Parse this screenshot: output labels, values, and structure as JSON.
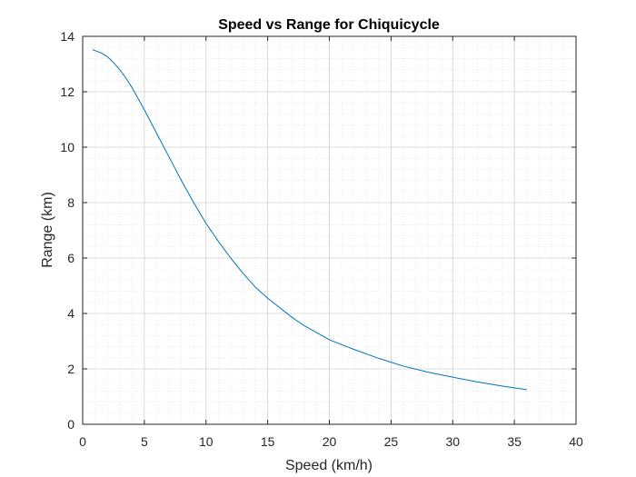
{
  "chart_data": {
    "type": "line",
    "title": "Speed vs Range for Chiquicycle",
    "xlabel": "Speed (km/h)",
    "ylabel": "Range (km)",
    "xlim": [
      0,
      40
    ],
    "ylim": [
      0,
      14
    ],
    "xticks": [
      0,
      5,
      10,
      15,
      20,
      25,
      30,
      35,
      40
    ],
    "yticks": [
      0,
      2,
      4,
      6,
      8,
      10,
      12,
      14
    ],
    "grid": true,
    "minor_grid": true,
    "line_color": "#0072BD",
    "series": [
      {
        "x": [
          0.8,
          1.5,
          2,
          2.5,
          3,
          3.5,
          4,
          5,
          6,
          7,
          8,
          9,
          10,
          11,
          12,
          13,
          14,
          15,
          16,
          17,
          18,
          19,
          20,
          22,
          24,
          26,
          28,
          30,
          32,
          34,
          36
        ],
        "y": [
          13.52,
          13.4,
          13.27,
          13.05,
          12.8,
          12.5,
          12.15,
          11.35,
          10.5,
          9.65,
          8.8,
          8.0,
          7.25,
          6.6,
          6.0,
          5.45,
          4.95,
          4.55,
          4.2,
          3.85,
          3.55,
          3.3,
          3.05,
          2.7,
          2.38,
          2.1,
          1.88,
          1.7,
          1.53,
          1.38,
          1.25
        ]
      }
    ]
  }
}
